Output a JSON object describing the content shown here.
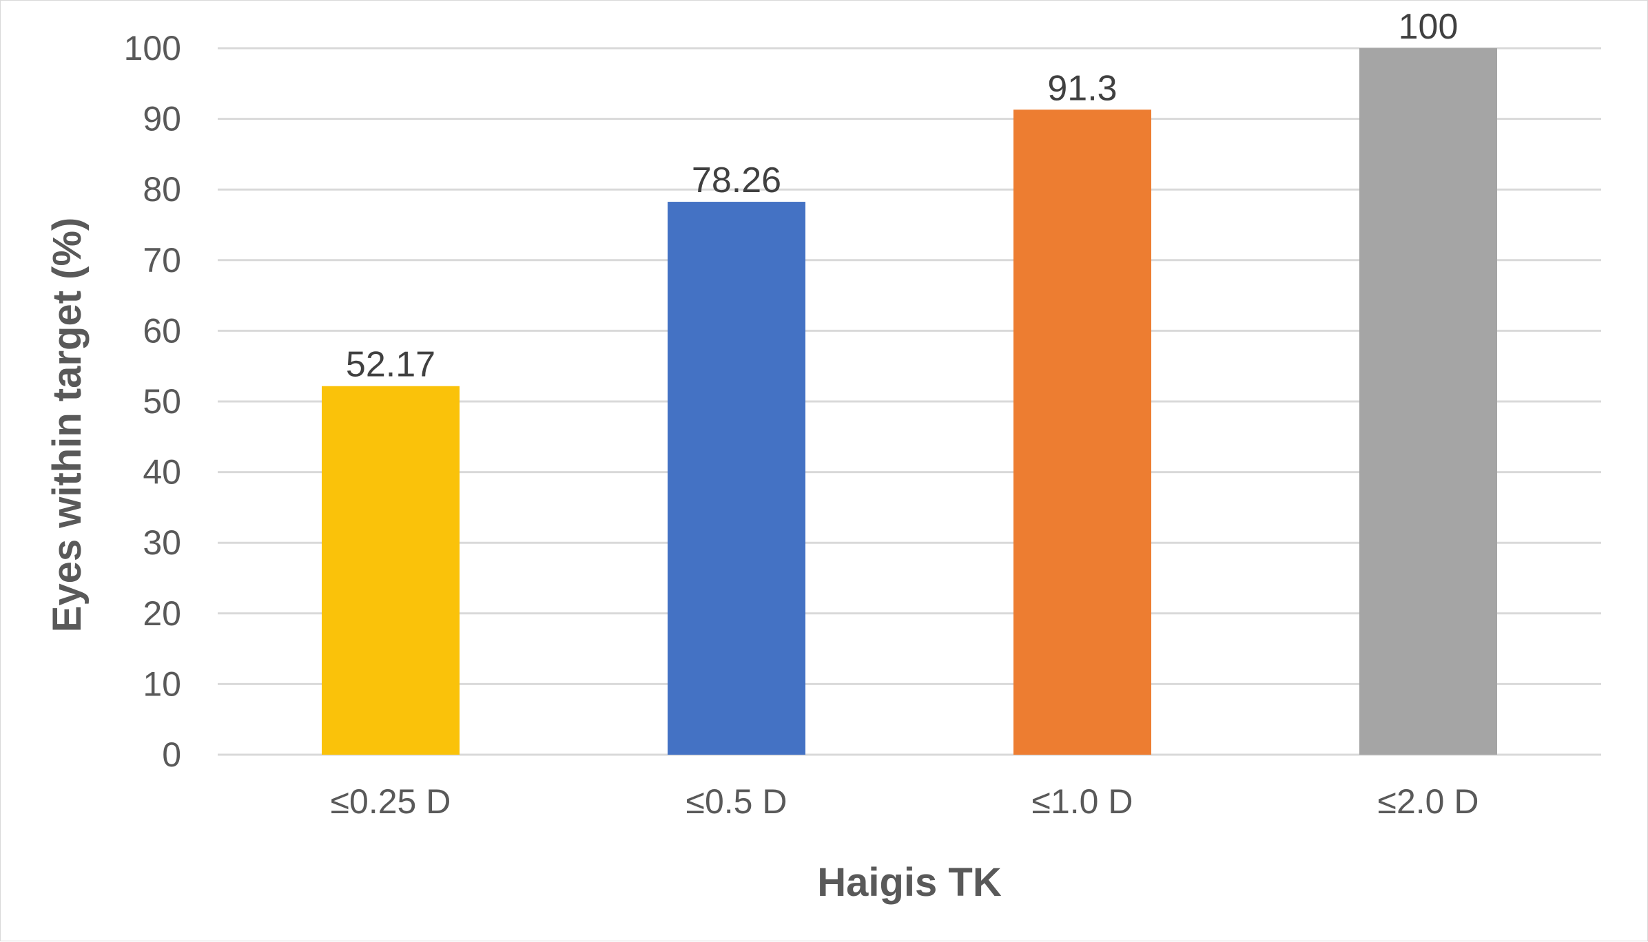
{
  "chart_data": {
    "type": "bar",
    "categories": [
      "≤0.25 D",
      "≤0.5 D",
      "≤1.0 D",
      "≤2.0 D"
    ],
    "values": [
      52.17,
      78.26,
      91.3,
      100
    ],
    "value_labels": [
      "52.17",
      "78.26",
      "91.3",
      "100"
    ],
    "colors": [
      "#FAC20A",
      "#4472C4",
      "#ED7D31",
      "#A5A5A5"
    ],
    "title": "",
    "xlabel": "Haigis TK",
    "ylabel": "Eyes within target (%)",
    "ylim": [
      0,
      100
    ],
    "yticks": [
      0,
      10,
      20,
      30,
      40,
      50,
      60,
      70,
      80,
      90,
      100
    ],
    "grid": true,
    "legend": "none"
  }
}
